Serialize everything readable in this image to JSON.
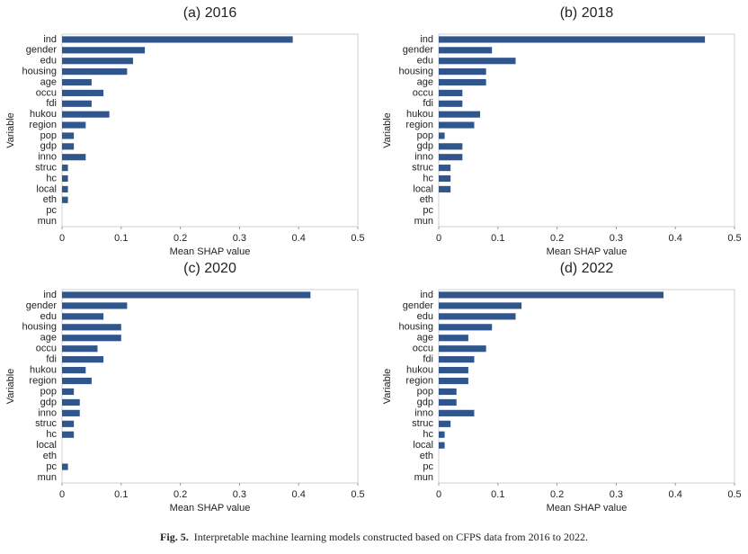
{
  "chart_data": [
    {
      "type": "bar",
      "orientation": "horizontal",
      "title": "(a) 2016",
      "categories": [
        "ind",
        "gender",
        "edu",
        "housing",
        "age",
        "occu",
        "fdi",
        "hukou",
        "region",
        "pop",
        "gdp",
        "inno",
        "struc",
        "hc",
        "local",
        "eth",
        "pc",
        "mun"
      ],
      "values": [
        0.39,
        0.14,
        0.12,
        0.11,
        0.05,
        0.07,
        0.05,
        0.08,
        0.04,
        0.02,
        0.02,
        0.04,
        0.01,
        0.01,
        0.01,
        0.01,
        0,
        0
      ],
      "color": "#30568c",
      "xlim": [
        0,
        0.5
      ],
      "xticks": [
        0,
        0.1,
        0.2,
        0.3,
        0.4,
        0.5
      ],
      "xlabel": "Mean SHAP value",
      "ylabel": "Variable"
    },
    {
      "type": "bar",
      "orientation": "horizontal",
      "title": "(b) 2018",
      "categories": [
        "ind",
        "gender",
        "edu",
        "housing",
        "age",
        "occu",
        "fdi",
        "hukou",
        "region",
        "pop",
        "gdp",
        "inno",
        "struc",
        "hc",
        "local",
        "eth",
        "pc",
        "mun"
      ],
      "values": [
        0.45,
        0.09,
        0.13,
        0.08,
        0.08,
        0.04,
        0.04,
        0.07,
        0.06,
        0.01,
        0.04,
        0.04,
        0.02,
        0.02,
        0.02,
        0,
        0,
        0
      ],
      "color": "#30568c",
      "xlim": [
        0,
        0.5
      ],
      "xticks": [
        0,
        0.1,
        0.2,
        0.3,
        0.4,
        0.5
      ],
      "xlabel": "Mean SHAP value",
      "ylabel": "Variable"
    },
    {
      "type": "bar",
      "orientation": "horizontal",
      "title": "(c) 2020",
      "categories": [
        "ind",
        "gender",
        "edu",
        "housing",
        "age",
        "occu",
        "fdi",
        "hukou",
        "region",
        "pop",
        "gdp",
        "inno",
        "struc",
        "hc",
        "local",
        "eth",
        "pc",
        "mun"
      ],
      "values": [
        0.42,
        0.11,
        0.07,
        0.1,
        0.1,
        0.06,
        0.07,
        0.04,
        0.05,
        0.02,
        0.03,
        0.03,
        0.02,
        0.02,
        0,
        0,
        0.01,
        0
      ],
      "color": "#30568c",
      "xlim": [
        0,
        0.5
      ],
      "xticks": [
        0,
        0.1,
        0.2,
        0.3,
        0.4,
        0.5
      ],
      "xlabel": "Mean SHAP value",
      "ylabel": "Variable"
    },
    {
      "type": "bar",
      "orientation": "horizontal",
      "title": "(d) 2022",
      "categories": [
        "ind",
        "gender",
        "edu",
        "housing",
        "age",
        "occu",
        "fdi",
        "hukou",
        "region",
        "pop",
        "gdp",
        "inno",
        "struc",
        "hc",
        "local",
        "eth",
        "pc",
        "mun"
      ],
      "values": [
        0.38,
        0.14,
        0.13,
        0.09,
        0.05,
        0.08,
        0.06,
        0.05,
        0.05,
        0.03,
        0.03,
        0.06,
        0.02,
        0.01,
        0.01,
        0,
        0,
        0
      ],
      "color": "#30568c",
      "xlim": [
        0,
        0.5
      ],
      "xticks": [
        0,
        0.1,
        0.2,
        0.3,
        0.4,
        0.5
      ],
      "xlabel": "Mean SHAP value",
      "ylabel": "Variable"
    }
  ],
  "caption": {
    "label": "Fig. 5.",
    "text": "Interpretable machine learning models constructed based on CFPS data from 2016 to 2022."
  }
}
